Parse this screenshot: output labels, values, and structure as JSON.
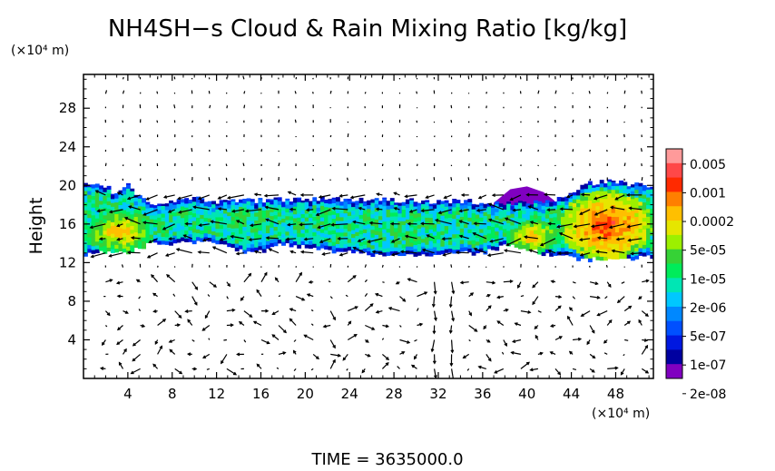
{
  "chart_data": {
    "type": "heatmap",
    "title": "NH4SH−s Cloud & Rain Mixing Ratio [kg/kg]",
    "ylabel": "Height",
    "y_unit": "(×10⁴ m)",
    "x_unit": "(×10⁴ m)",
    "xlim": [
      0,
      51.4
    ],
    "ylim": [
      0,
      31.5
    ],
    "x_ticks": [
      4,
      8,
      12,
      16,
      20,
      24,
      28,
      32,
      36,
      40,
      44,
      48
    ],
    "y_ticks": [
      4,
      8,
      12,
      16,
      20,
      24,
      28
    ],
    "x_tick_labels": [
      "4",
      "8",
      "12",
      "16",
      "20",
      "24",
      "28",
      "32",
      "36",
      "40",
      "44",
      "48"
    ],
    "y_tick_labels": [
      "4",
      "8",
      "12",
      "16",
      "20",
      "24",
      "28"
    ],
    "grid": false,
    "colorbar": {
      "labels": [
        "0.005",
        "0.001",
        "0.0002",
        "5e-05",
        "1e-05",
        "2e-06",
        "5e-07",
        "1e-07",
        "2e-08"
      ],
      "colors": [
        "#ff9a9a",
        "#ff4848",
        "#ff2a00",
        "#ff7f00",
        "#ffbf00",
        "#e6e600",
        "#9cf000",
        "#36d236",
        "#00ec5a",
        "#00e6b4",
        "#00c8ff",
        "#0088ff",
        "#0050ff",
        "#0018e0",
        "#0000a0",
        "#8000c0"
      ]
    },
    "cloud_layer": {
      "columns_x": [
        0,
        2,
        3,
        4,
        5,
        6,
        8,
        10,
        12,
        14,
        16,
        18,
        20,
        22,
        24,
        26,
        28,
        30,
        32,
        34,
        36,
        38,
        40,
        42,
        43,
        44,
        45,
        46,
        48,
        50,
        51.4
      ],
      "bottom": [
        12.9,
        13.2,
        13,
        13,
        13.5,
        14,
        14,
        14.2,
        14,
        13.2,
        13.2,
        14,
        13.6,
        13.2,
        13.2,
        12.8,
        13,
        12.8,
        12.8,
        13,
        13,
        13.8,
        13.5,
        12.8,
        13,
        12.5,
        12.2,
        12.4,
        12.3,
        12.5,
        12.7
      ],
      "top": [
        20,
        20,
        19,
        20,
        19,
        17.8,
        18.4,
        18.6,
        18.4,
        18.3,
        18.5,
        18.5,
        18.7,
        18.6,
        18.4,
        18.6,
        18.4,
        18.5,
        18.3,
        18.4,
        18.2,
        18.1,
        18.3,
        18.2,
        18.8,
        19.2,
        20,
        20.3,
        20.5,
        20,
        19.8
      ],
      "anvil_top": {
        "x": [
          37,
          38.5,
          40,
          41.5,
          42.5
        ],
        "y": [
          18.2,
          19.6,
          19.9,
          19.3,
          18.4
        ]
      },
      "core_regions": [
        {
          "x": [
            0,
            6.5
          ],
          "y": [
            12.9,
            17.5
          ],
          "level": "0.0002"
        },
        {
          "x": [
            38,
            43
          ],
          "y": [
            13,
            16.5
          ],
          "level": "0.0002"
        },
        {
          "x": [
            43,
            51.4
          ],
          "y": [
            12.3,
            19.5
          ],
          "level": "0.001"
        }
      ]
    },
    "wind_vectors": {
      "grid_x_start": 2,
      "grid_x_step": 1.56,
      "grid_y_start": 1,
      "grid_y_step": 1.5
    }
  },
  "time_label": "TIME  =  3635000.0"
}
